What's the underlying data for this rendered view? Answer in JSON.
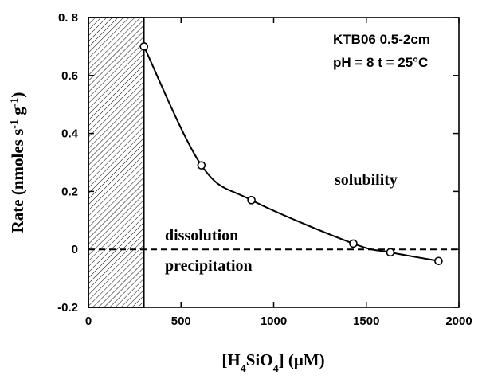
{
  "chart_data": {
    "type": "scatter",
    "title": "",
    "info_lines": [
      "KTB06 0.5-2cm",
      "pH = 8 t = 25°C"
    ],
    "xlabel": "[H4SiO4] (μM)",
    "ylabel": "Rate (nmoles s-1 g-1)",
    "xlim": [
      0,
      2000
    ],
    "ylim": [
      -0.2,
      0.8
    ],
    "x_ticks": [
      0,
      500,
      1000,
      1500,
      2000
    ],
    "x_tick_labels": [
      "0",
      "500",
      "1000",
      "1500",
      "2000"
    ],
    "y_ticks": [
      -0.2,
      0,
      0.2,
      0.4,
      0.6,
      0.8
    ],
    "y_tick_labels": [
      "-0.2",
      "0",
      "0.2",
      "0.4",
      "0.6",
      "0. 8"
    ],
    "grid": false,
    "legend": "none",
    "series": [
      {
        "x": [
          300,
          610,
          880,
          1430,
          1630,
          1890
        ],
        "y": [
          0.7,
          0.29,
          0.17,
          0.02,
          -0.01,
          -0.04
        ],
        "marker": "open-circle",
        "fit_curve": true
      }
    ],
    "hatched_region": {
      "x": [
        0,
        300
      ]
    },
    "zero_line": {
      "y": 0,
      "style": "dashed"
    },
    "annotations": [
      "solubility",
      "dissolution",
      "precipitation"
    ]
  }
}
